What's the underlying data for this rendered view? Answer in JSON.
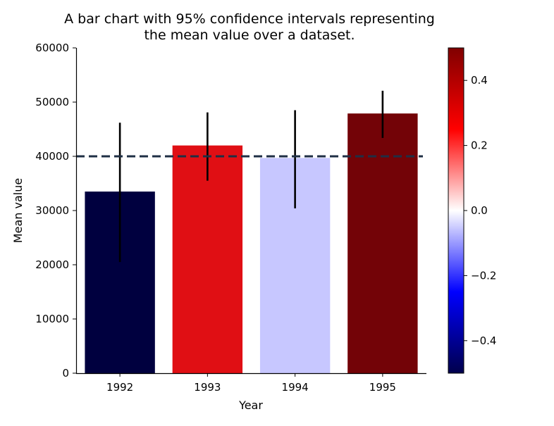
{
  "chart_data": {
    "type": "bar",
    "title": "A bar chart with 95% confidence intervals representing\nthe mean value over a dataset.",
    "xlabel": "Year",
    "ylabel": "Mean value",
    "categories": [
      "1992",
      "1993",
      "1994",
      "1995"
    ],
    "values": [
      33500,
      42000,
      39700,
      47900
    ],
    "ci_low": [
      20500,
      35500,
      30400,
      43400
    ],
    "ci_high": [
      46200,
      48100,
      48500,
      52100
    ],
    "bar_colors": [
      "#00003f",
      "#e00f14",
      "#c7c7ff",
      "#730307"
    ],
    "ylim": [
      0,
      60000
    ],
    "yticks": [
      0,
      10000,
      20000,
      30000,
      40000,
      50000,
      60000
    ],
    "reference_line": {
      "value": 40000,
      "style": "dashed",
      "color": "#1f2f44"
    },
    "grid": false,
    "colorbar": {
      "colormap": "seismic",
      "range": [
        -0.5,
        0.5
      ],
      "ticks": [
        -0.4,
        -0.2,
        0.0,
        0.2,
        0.4
      ],
      "tick_labels": [
        "−0.4",
        "−0.2",
        "0.0",
        "0.2",
        "0.4"
      ]
    }
  }
}
